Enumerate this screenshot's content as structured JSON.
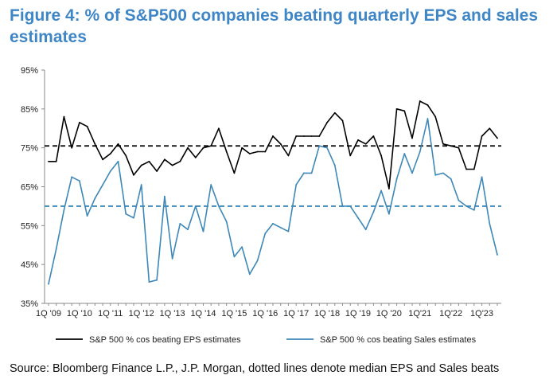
{
  "figure": {
    "title": "Figure 4: % of S&P500 companies beating quarterly EPS and sales estimates",
    "source": "Source: Bloomberg Finance L.P., J.P. Morgan, dotted lines denote median EPS and Sales beats"
  },
  "colors": {
    "eps": "#000000",
    "sales": "#3d88b8",
    "title": "#3f86c7"
  },
  "chart_data": {
    "type": "line",
    "title": "Figure 4: % of S&P500 companies beating quarterly EPS and sales estimates",
    "xlabel": "",
    "ylabel": "",
    "ylim": [
      35,
      95
    ],
    "yticks": [
      "35%",
      "45%",
      "55%",
      "65%",
      "75%",
      "85%",
      "95%"
    ],
    "xtick_labels": [
      "1Q '09",
      "1Q '10",
      "1Q '11",
      "1Q '12",
      "1Q '13",
      "1Q '14",
      "1Q '15",
      "1Q '16",
      "1Q '17",
      "1Q '18",
      "1Q '19",
      "1Q '20",
      "1Q'21",
      "1Q'22",
      "1Q'23"
    ],
    "x_start": "1Q '09",
    "series": [
      {
        "name": "S&P 500 % cos beating EPS estimates",
        "style": "solid",
        "values": [
          71.5,
          71.5,
          83,
          75,
          81.5,
          80.5,
          76,
          72,
          73.5,
          76,
          73,
          68,
          70.5,
          71.5,
          69,
          72,
          70.5,
          71.5,
          75,
          72.5,
          75,
          75.5,
          80,
          74,
          68.5,
          75,
          73.5,
          74,
          74,
          78,
          76,
          73,
          78,
          78,
          78,
          78,
          81.5,
          84,
          82,
          73,
          77,
          76,
          78,
          73,
          64.5,
          85,
          84.5,
          77.5,
          87,
          86,
          83,
          76,
          75.5,
          75,
          69.5,
          69.5,
          78,
          80,
          77.5
        ]
      },
      {
        "name": "S&P 500 % cos beating Sales estimates",
        "style": "solid",
        "values": [
          40,
          49,
          59,
          67.5,
          66.5,
          57.5,
          62,
          65.5,
          69,
          71.5,
          58,
          57,
          65.5,
          40.5,
          41,
          62.5,
          46.5,
          55.5,
          54,
          60,
          53.5,
          65.5,
          60,
          56,
          47,
          49.5,
          42.5,
          46,
          53,
          55.5,
          54.5,
          53.5,
          65.5,
          68.5,
          68.5,
          75.5,
          75,
          70.5,
          60,
          60,
          57,
          54,
          58.5,
          64,
          58,
          67,
          73.5,
          68.5,
          74,
          82.5,
          68,
          68.5,
          67,
          61.5,
          60,
          59,
          67.5,
          55.5,
          47.5
        ]
      }
    ],
    "reference_lines": [
      {
        "name": "Median EPS beats",
        "value": 75.5,
        "style": "dashed",
        "color": "#000000"
      },
      {
        "name": "Median Sales beats",
        "value": 60,
        "style": "dashed",
        "color": "#3d88b8"
      }
    ],
    "legend": "bottom",
    "grid": false
  }
}
